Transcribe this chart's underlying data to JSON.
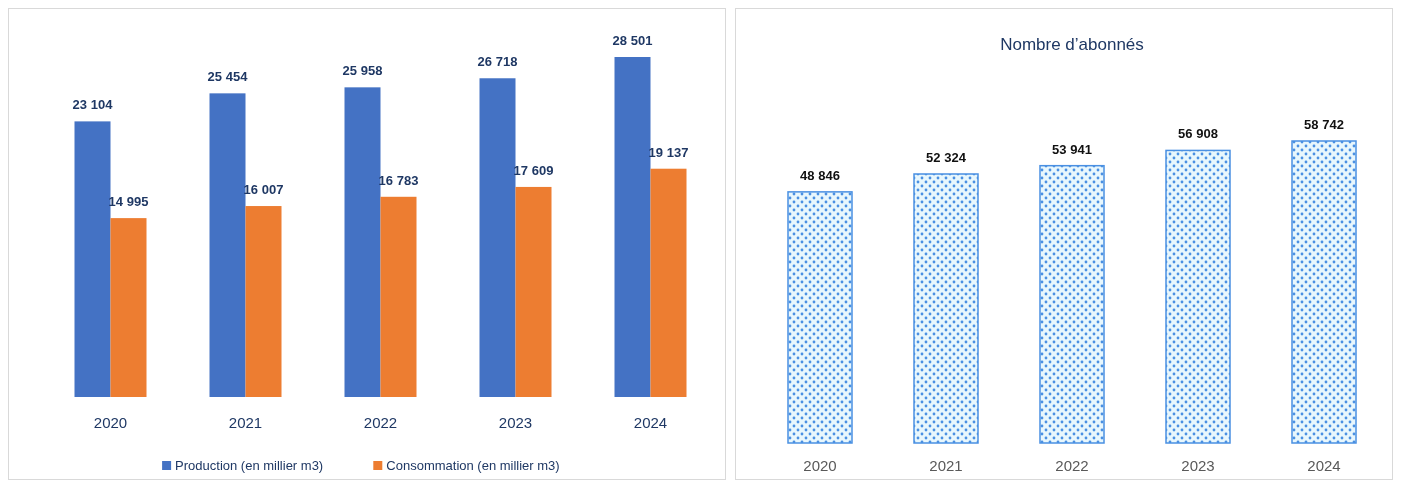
{
  "chart_data": [
    {
      "type": "bar",
      "categories": [
        "2020",
        "2021",
        "2022",
        "2023",
        "2024"
      ],
      "series": [
        {
          "name": "Production (en millier m3)",
          "color": "#4472c4",
          "values": [
            23104,
            25454,
            25958,
            26718,
            28501
          ]
        },
        {
          "name": "Consommation (en millier m3)",
          "color": "#ed7d31",
          "values": [
            14995,
            16007,
            16783,
            17609,
            19137
          ]
        }
      ],
      "data_labels": true,
      "legend": "bottom",
      "tick_labels": "x"
    },
    {
      "type": "bar",
      "title": "Nombre d’abonnés",
      "categories": [
        "2020",
        "2021",
        "2022",
        "2023",
        "2024"
      ],
      "series": [
        {
          "color": "#4a90e2",
          "values": [
            48846,
            52324,
            53941,
            56908,
            58742
          ]
        }
      ],
      "data_labels": true,
      "tick_labels": "x"
    }
  ]
}
